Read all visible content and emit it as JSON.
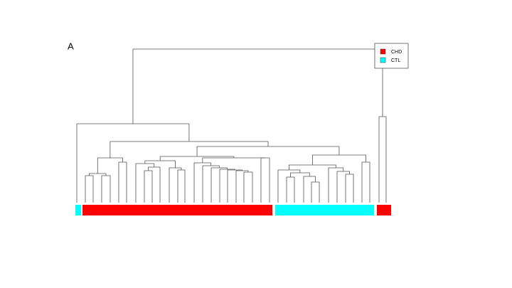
{
  "panel_label": "A",
  "legend": [
    {
      "name": "CHD",
      "color": "#ff0000"
    },
    {
      "name": "CTL",
      "color": "#00ffff"
    }
  ]
}
